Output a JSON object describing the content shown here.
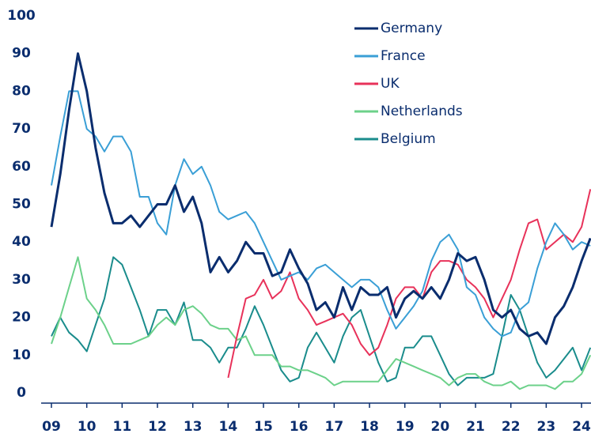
{
  "chart_data": {
    "type": "line",
    "x": [
      2009,
      2009.25,
      2009.5,
      2009.75,
      2010,
      2010.25,
      2010.5,
      2010.75,
      2011,
      2011.25,
      2011.5,
      2011.75,
      2012,
      2012.25,
      2012.5,
      2012.75,
      2013,
      2013.25,
      2013.5,
      2013.75,
      2014,
      2014.25,
      2014.5,
      2014.75,
      2015,
      2015.25,
      2015.5,
      2015.75,
      2016,
      2016.25,
      2016.5,
      2016.75,
      2017,
      2017.25,
      2017.5,
      2017.75,
      2018,
      2018.25,
      2018.5,
      2018.75,
      2019,
      2019.25,
      2019.5,
      2019.75,
      2020,
      2020.25,
      2020.5,
      2020.75,
      2021,
      2021.25,
      2021.5,
      2021.75,
      2022,
      2022.25,
      2022.5,
      2022.75,
      2023,
      2023.25,
      2023.5,
      2023.75,
      2024,
      2024.25
    ],
    "series": [
      {
        "name": "Germany",
        "color": "#0a2d6e",
        "values": [
          44,
          58,
          75,
          90,
          80,
          65,
          53,
          45,
          45,
          47,
          44,
          47,
          50,
          50,
          55,
          48,
          52,
          45,
          32,
          36,
          32,
          35,
          40,
          37,
          37,
          31,
          32,
          38,
          33,
          29,
          22,
          24,
          20,
          28,
          22,
          28,
          26,
          26,
          28,
          20,
          25,
          27,
          25,
          28,
          25,
          30,
          37,
          35,
          36,
          30,
          22,
          20,
          22,
          17,
          15,
          16,
          13,
          20,
          23,
          28,
          35,
          41
        ]
      },
      {
        "name": "France",
        "color": "#3a9fd6",
        "values": [
          55,
          68,
          80,
          80,
          70,
          68,
          64,
          68,
          68,
          64,
          52,
          52,
          45,
          42,
          55,
          62,
          58,
          60,
          55,
          48,
          46,
          47,
          48,
          45,
          40,
          35,
          30,
          31,
          32,
          30,
          33,
          34,
          32,
          30,
          28,
          30,
          30,
          28,
          22,
          17,
          20,
          23,
          27,
          35,
          40,
          42,
          38,
          28,
          26,
          20,
          17,
          15,
          16,
          22,
          24,
          33,
          40,
          45,
          42,
          38,
          40,
          39
        ]
      },
      {
        "name": "UK",
        "color": "#e8325a",
        "values": [
          null,
          null,
          null,
          null,
          null,
          null,
          null,
          null,
          null,
          null,
          null,
          null,
          null,
          null,
          null,
          null,
          null,
          null,
          null,
          null,
          4,
          15,
          25,
          26,
          30,
          25,
          27,
          32,
          25,
          22,
          18,
          19,
          20,
          21,
          18,
          13,
          10,
          12,
          18,
          25,
          28,
          28,
          25,
          32,
          35,
          35,
          34,
          30,
          28,
          25,
          20,
          25,
          30,
          38,
          45,
          46,
          38,
          40,
          42,
          40,
          44,
          54
        ]
      },
      {
        "name": "Netherlands",
        "color": "#6cd18a",
        "values": [
          13,
          20,
          28,
          36,
          25,
          22,
          18,
          13,
          13,
          13,
          14,
          15,
          18,
          20,
          18,
          22,
          23,
          21,
          18,
          17,
          17,
          14,
          15,
          10,
          10,
          10,
          7,
          7,
          6,
          6,
          5,
          4,
          2,
          3,
          3,
          3,
          3,
          3,
          6,
          9,
          8,
          7,
          6,
          5,
          4,
          2,
          4,
          5,
          5,
          3,
          2,
          2,
          3,
          1,
          2,
          2,
          2,
          1,
          3,
          3,
          5,
          10
        ]
      },
      {
        "name": "Belgium",
        "color": "#1a8c8c",
        "values": [
          15,
          20,
          16,
          14,
          11,
          18,
          25,
          36,
          34,
          28,
          22,
          15,
          22,
          22,
          18,
          24,
          14,
          14,
          12,
          8,
          12,
          12,
          17,
          23,
          18,
          12,
          6,
          3,
          4,
          12,
          16,
          12,
          8,
          15,
          20,
          22,
          15,
          8,
          3,
          4,
          12,
          12,
          15,
          15,
          10,
          5,
          2,
          4,
          4,
          4,
          5,
          15,
          26,
          22,
          15,
          8,
          4,
          6,
          9,
          12,
          6,
          12
        ]
      }
    ],
    "xlim": [
      2009,
      2024.25
    ],
    "xticks": [
      {
        "value": 2009,
        "label": "09"
      },
      {
        "value": 2010,
        "label": "10"
      },
      {
        "value": 2011,
        "label": "11"
      },
      {
        "value": 2012,
        "label": "12"
      },
      {
        "value": 2013,
        "label": "13"
      },
      {
        "value": 2014,
        "label": "14"
      },
      {
        "value": 2015,
        "label": "15"
      },
      {
        "value": 2016,
        "label": "16"
      },
      {
        "value": 2017,
        "label": "17"
      },
      {
        "value": 2018,
        "label": "18"
      },
      {
        "value": 2019,
        "label": "19"
      },
      {
        "value": 2020,
        "label": "20"
      },
      {
        "value": 2021,
        "label": "21"
      },
      {
        "value": 2022,
        "label": "22"
      },
      {
        "value": 2023,
        "label": "23"
      },
      {
        "value": 2024,
        "label": "24"
      }
    ],
    "ylim": [
      0,
      100
    ],
    "yticks": [
      0,
      10,
      20,
      30,
      40,
      50,
      60,
      70,
      80,
      90,
      100
    ],
    "legend": "upper-right"
  }
}
